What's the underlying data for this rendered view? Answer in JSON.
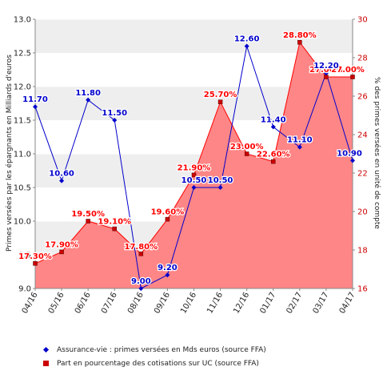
{
  "chart_data": {
    "type": "line",
    "categories": [
      "04/16",
      "05/16",
      "06/16",
      "07/16",
      "08/16",
      "09/16",
      "10/16",
      "11/16",
      "12/16",
      "01/17",
      "02/17",
      "03/17",
      "04/17"
    ],
    "series": [
      {
        "name": "Assurance-vie : primes versées en Mds euros (source FFA)",
        "axis": "left",
        "color": "#0000cc",
        "values": [
          11.7,
          10.6,
          11.8,
          11.5,
          9.0,
          9.2,
          10.5,
          10.5,
          12.6,
          11.4,
          11.1,
          12.2,
          10.9
        ],
        "labels": [
          "11.70",
          "10.60",
          "11.80",
          "11.50",
          "9.00",
          "9.20",
          "10.50",
          "10.50",
          "12.60",
          "11.40",
          "11.10",
          "12.20",
          "10.90"
        ]
      },
      {
        "name": "Part en pourcentage des cotisations sur UC (source FFA)",
        "axis": "right",
        "color": "#ff0000",
        "fill": "#ff7f7f",
        "values": [
          17.3,
          17.9,
          19.5,
          19.1,
          17.8,
          19.6,
          21.9,
          25.7,
          23.0,
          22.6,
          28.8,
          27.0,
          27.0
        ],
        "labels": [
          "17.30%",
          "17.90%",
          "19.50%",
          "19.10%",
          "17.80%",
          "19.60%",
          "21.90%",
          "25.70%",
          "23.00%",
          "22.60%",
          "28.80%",
          "27.00%",
          "27.00%"
        ]
      }
    ],
    "ylabel_left": "Primes versées par les épargnants en Milliards d'euros",
    "ylabel_right": "% des primes versées en unité de compte",
    "ylim_left": [
      9.0,
      13.0
    ],
    "ylim_right": [
      16,
      30
    ],
    "yticks_left": [
      "9.0",
      "9.5",
      "10.0",
      "10.5",
      "11.0",
      "11.5",
      "12.0",
      "12.5",
      "13.0"
    ],
    "yticks_right": [
      "16",
      "18",
      "20",
      "22",
      "24",
      "26",
      "28",
      "30"
    ],
    "grid": true,
    "legend_position": "bottom"
  }
}
